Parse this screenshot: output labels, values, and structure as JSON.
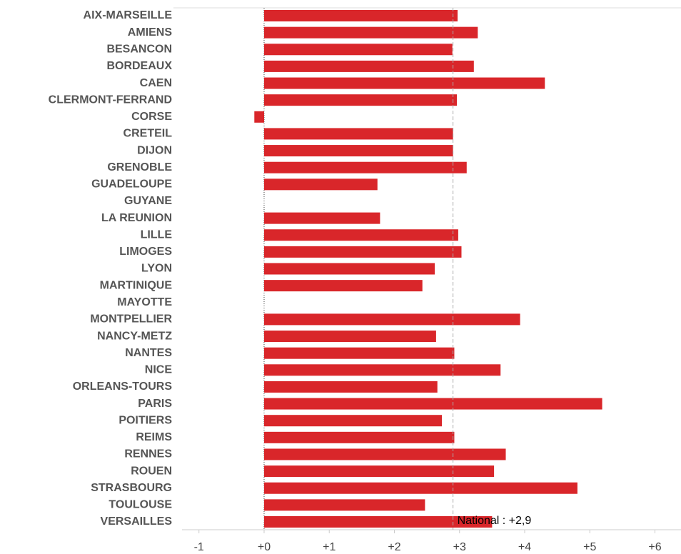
{
  "chart_data": {
    "type": "bar",
    "orientation": "horizontal",
    "categories": [
      "AIX-MARSEILLE",
      "AMIENS",
      "BESANCON",
      "BORDEAUX",
      "CAEN",
      "CLERMONT-FERRAND",
      "CORSE",
      "CRETEIL",
      "DIJON",
      "GRENOBLE",
      "GUADELOUPE",
      "GUYANE",
      "LA REUNION",
      "LILLE",
      "LIMOGES",
      "LYON",
      "MARTINIQUE",
      "MAYOTTE",
      "MONTPELLIER",
      "NANCY-METZ",
      "NANTES",
      "NICE",
      "ORLEANS-TOURS",
      "PARIS",
      "POITIERS",
      "REIMS",
      "RENNES",
      "ROUEN",
      "STRASBOURG",
      "TOULOUSE",
      "VERSAILLES"
    ],
    "values": [
      2.97,
      3.28,
      2.89,
      3.22,
      4.31,
      2.96,
      -0.15,
      2.9,
      2.9,
      3.11,
      1.74,
      null,
      1.78,
      2.98,
      3.03,
      2.62,
      2.43,
      null,
      3.93,
      2.64,
      2.92,
      3.63,
      2.66,
      5.19,
      2.73,
      2.92,
      3.71,
      3.53,
      4.81,
      2.47,
      3.5
    ],
    "color": "#d9262a",
    "xlim": [
      -1.26,
      6.4
    ],
    "xticks": [
      -1,
      {
        "value": 0,
        "label": "+0"
      },
      {
        "value": 1,
        "label": "+1"
      },
      {
        "value": 2,
        "label": "+2"
      },
      {
        "value": 3,
        "label": "+3"
      },
      {
        "value": 4,
        "label": "+4"
      },
      {
        "value": 5,
        "label": "+5"
      },
      {
        "value": 6,
        "label": "+6"
      }
    ],
    "reference": {
      "value": 2.9,
      "label": "National : +2,9"
    }
  }
}
